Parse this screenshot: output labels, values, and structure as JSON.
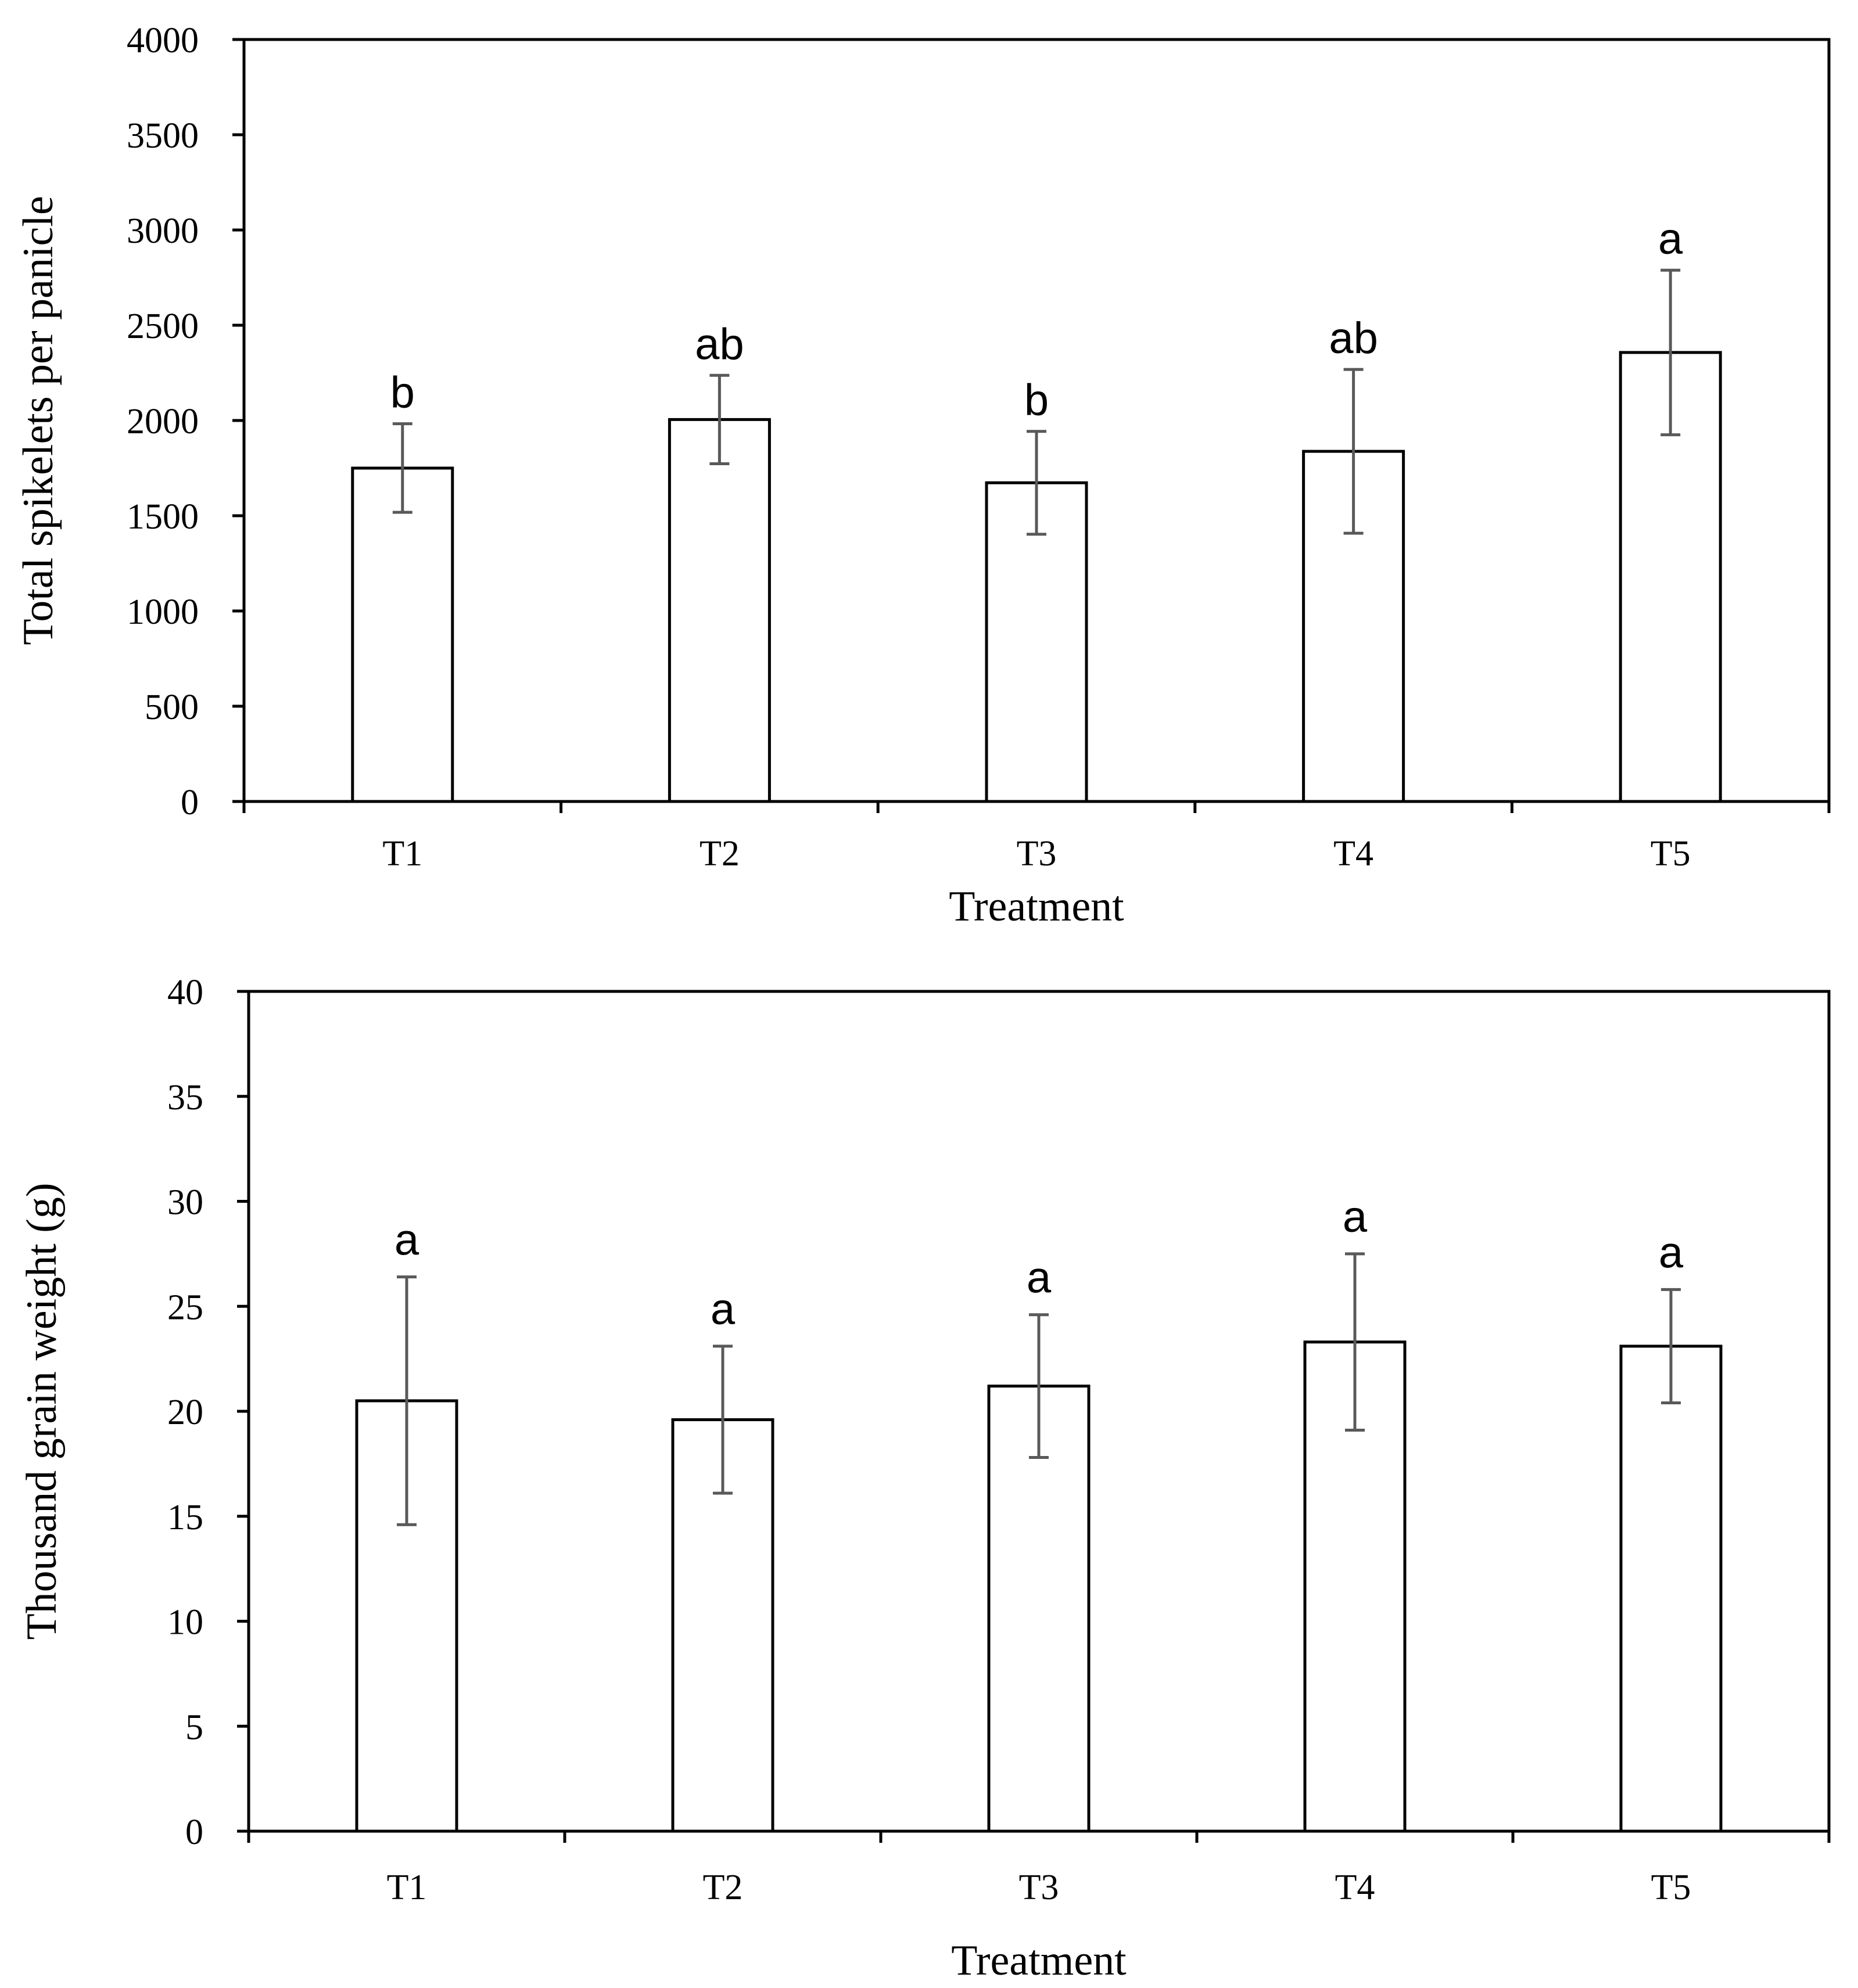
{
  "chart_data": [
    {
      "type": "bar",
      "title": "",
      "xlabel": "Treatment",
      "ylabel": "Total spikelets per panicle",
      "categories": [
        "T1",
        "T2",
        "T3",
        "T4",
        "T5"
      ],
      "values": [
        1750,
        2005,
        1673,
        1838,
        2357
      ],
      "error_low": [
        1518,
        1773,
        1403,
        1408,
        1925
      ],
      "error_high": [
        1983,
        2237,
        1943,
        2268,
        2789
      ],
      "significance_letters": [
        "b",
        "ab",
        "b",
        "ab",
        "a"
      ],
      "ylim": [
        0,
        4000
      ],
      "yticks": [
        0,
        500,
        1000,
        1500,
        2000,
        2500,
        3000,
        3500,
        4000
      ],
      "grid": false,
      "legend": "none",
      "colors": {
        "bar_fill": "#ffffff",
        "bar_stroke": "#000000",
        "error_bar": "#595959",
        "axis": "#000000"
      }
    },
    {
      "type": "bar",
      "title": "",
      "xlabel": "Treatment",
      "ylabel": "Thousand grain weight (g)",
      "categories": [
        "T1",
        "T2",
        "T3",
        "T4",
        "T5"
      ],
      "values": [
        20.5,
        19.6,
        21.2,
        23.3,
        23.1
      ],
      "error_low": [
        14.6,
        16.1,
        17.8,
        19.1,
        20.4
      ],
      "error_high": [
        26.4,
        23.1,
        24.6,
        27.5,
        25.8
      ],
      "significance_letters": [
        "a",
        "a",
        "a",
        "a",
        "a"
      ],
      "ylim": [
        0,
        40
      ],
      "yticks": [
        0,
        5,
        10,
        15,
        20,
        25,
        30,
        35,
        40
      ],
      "grid": false,
      "legend": "none",
      "colors": {
        "bar_fill": "#ffffff",
        "bar_stroke": "#000000",
        "error_bar": "#595959",
        "axis": "#000000"
      }
    }
  ]
}
